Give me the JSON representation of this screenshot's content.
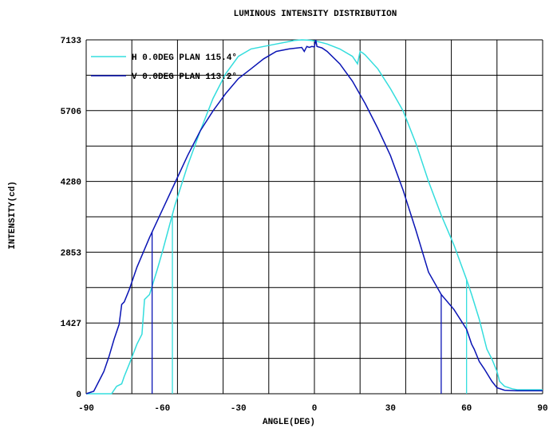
{
  "chart_data": {
    "type": "line",
    "title": "LUMINOUS INTENSITY DISTRIBUTION",
    "xlabel": "ANGLE(DEG)",
    "ylabel": "INTENSITY(cd)",
    "xlim": [
      -90,
      90
    ],
    "ylim": [
      0,
      7133
    ],
    "x_ticks": [
      -90,
      -60,
      -30,
      0,
      30,
      60,
      90
    ],
    "y_ticks": [
      0,
      1427,
      2853,
      4280,
      5706,
      7133
    ],
    "x_tick_labels": [
      "-90",
      "-60",
      "-30",
      "0",
      "30",
      "60",
      "90"
    ],
    "y_tick_labels": [
      "0",
      "1427",
      "2853",
      "4280",
      "5706",
      "7133"
    ],
    "grid": true,
    "legend_position": "top-left",
    "series": [
      {
        "name": "H 0.0DEG PLAN 115.4°",
        "color": "#33dddd",
        "beam_edges": [
          -56,
          60
        ],
        "x": [
          -90,
          -80,
          -78,
          -76,
          -75,
          -73,
          -70,
          -68,
          -67,
          -65,
          -62,
          -60,
          -55,
          -50,
          -45,
          -40,
          -35,
          -30,
          -25,
          -20,
          -15,
          -10,
          -8,
          -5,
          -3,
          -1,
          0,
          2,
          5,
          10,
          15,
          17,
          18,
          19,
          20,
          25,
          30,
          35,
          40,
          45,
          50,
          55,
          60,
          62,
          65,
          67,
          68,
          70,
          72,
          73,
          75,
          78,
          80,
          85,
          90
        ],
        "y": [
          0,
          0,
          150,
          200,
          350,
          600,
          1000,
          1200,
          1900,
          2000,
          2500,
          2850,
          3800,
          4600,
          5300,
          5950,
          6450,
          6800,
          6950,
          7000,
          7050,
          7100,
          7120,
          7133,
          7130,
          7120,
          7110,
          7090,
          7050,
          6950,
          6800,
          6650,
          6900,
          6870,
          6830,
          6550,
          6150,
          5700,
          5050,
          4280,
          3600,
          3000,
          2300,
          2000,
          1500,
          1100,
          900,
          700,
          450,
          250,
          150,
          100,
          80,
          80,
          80
        ]
      },
      {
        "name": "V 0.0DEG PLAN 113.2°",
        "color": "#0a14b4",
        "beam_edges": [
          -64,
          50
        ],
        "x": [
          -90,
          -87,
          -85,
          -83,
          -81,
          -79,
          -77,
          -76,
          -75,
          -73,
          -70,
          -65,
          -60,
          -55,
          -50,
          -45,
          -40,
          -35,
          -30,
          -25,
          -20,
          -15,
          -10,
          -5,
          -4,
          -3,
          -2,
          -1,
          0,
          0.5,
          1,
          3,
          5,
          10,
          15,
          20,
          25,
          30,
          35,
          40,
          45,
          50,
          55,
          60,
          62,
          63,
          65,
          67,
          70,
          72,
          75,
          80,
          85,
          90
        ],
        "y": [
          0,
          50,
          250,
          450,
          750,
          1100,
          1400,
          1800,
          1850,
          2100,
          2550,
          3150,
          3700,
          4250,
          4800,
          5300,
          5700,
          6050,
          6350,
          6550,
          6750,
          6900,
          6950,
          6980,
          6900,
          7000,
          6980,
          7000,
          6990,
          7133,
          7000,
          6970,
          6900,
          6650,
          6300,
          5850,
          5350,
          4800,
          4100,
          3300,
          2450,
          2000,
          1700,
          1300,
          1000,
          900,
          650,
          500,
          250,
          120,
          70,
          60,
          60,
          60
        ]
      }
    ]
  }
}
